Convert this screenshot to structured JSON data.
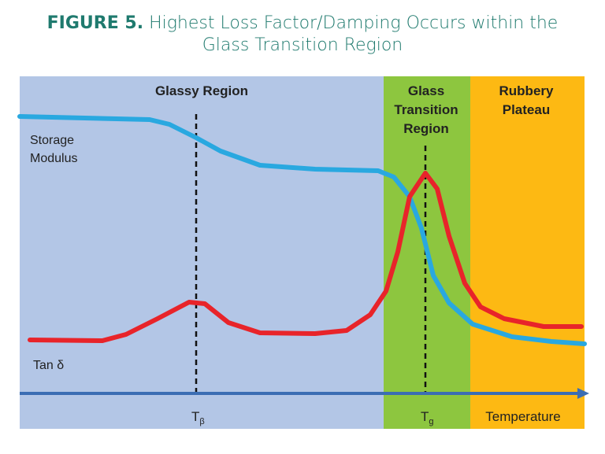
{
  "title": {
    "prefix": "FIGURE 5.",
    "line1": "Highest Loss Factor/Damping Occurs within the",
    "line2": "Glass Transition Region"
  },
  "regions": [
    {
      "label_lines": [
        "Glassy Region"
      ],
      "color": "#b3c6e6"
    },
    {
      "label_lines": [
        "Glass",
        "Transition",
        "Region"
      ],
      "color": "#8dc63f"
    },
    {
      "label_lines": [
        "Rubbery",
        "Plateau"
      ],
      "color": "#fdb913"
    }
  ],
  "curves": {
    "storage": {
      "label_lines": [
        "Storage",
        "Modulus"
      ],
      "color": "#29a8e0"
    },
    "tan": {
      "label": "Tan δ",
      "color": "#e8242a"
    }
  },
  "markers": {
    "t_beta": {
      "main": "T",
      "sub": "β"
    },
    "t_g": {
      "main": "T",
      "sub": "g"
    }
  },
  "axis": {
    "label": "Temperature",
    "color": "#3b6db3"
  }
}
